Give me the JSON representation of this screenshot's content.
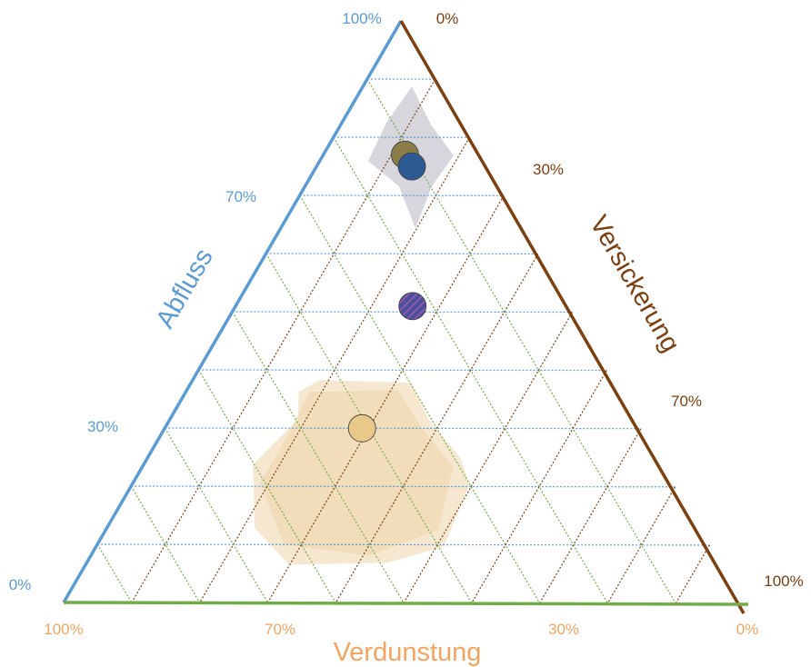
{
  "axes": {
    "abfluss": {
      "title": "Abfluss",
      "color": "#5b9bd5",
      "ticks": {
        "top": "100%",
        "upper": "70%",
        "lower": "30%",
        "bottom": "0%"
      }
    },
    "versickerung": {
      "title": "Versickerung",
      "color": "#7b3f10",
      "ticks": {
        "top": "0%",
        "upper": "30%",
        "lower": "70%",
        "bottom": "100%"
      }
    },
    "verdunstung": {
      "title": "Verdunstung",
      "color": "#f4a460",
      "base_line_color": "#70ad47",
      "ticks": {
        "left": "100%",
        "upper": "70%",
        "lower": "30%",
        "right": "0%"
      }
    }
  },
  "grid": {
    "colors": {
      "abfluss": "#5b9bd5",
      "verdunstung": "#70ad47",
      "versickerung": "#7b3f10"
    },
    "step_percent": 10
  },
  "chart_data": {
    "type": "ternary-scatter",
    "components": [
      "Abfluss",
      "Versickerung",
      "Verdunstung"
    ],
    "points": [
      {
        "abfluss": 77,
        "versickerung": 12,
        "verdunstung": 11,
        "color": "#8b7d4a",
        "fill": "solid"
      },
      {
        "abfluss": 75,
        "versickerung": 14,
        "verdunstung": 11,
        "color": "#2e5a94",
        "fill": "solid"
      },
      {
        "abfluss": 51,
        "versickerung": 26,
        "verdunstung": 23,
        "color": "#4a4f9e",
        "fill": "hatched-purple"
      },
      {
        "abfluss": 30,
        "versickerung": 29,
        "verdunstung": 41,
        "color": "#e9c98a",
        "fill": "solid"
      }
    ],
    "regions": [
      {
        "color": "#c8c8d0",
        "opacity": 0.75,
        "layer": "outer",
        "around_point": 1
      },
      {
        "color": "#f0d9b0",
        "opacity": 0.6,
        "layer": "outer",
        "around_point": 3
      },
      {
        "color": "#ecd3a6",
        "opacity": 0.55,
        "layer": "inner",
        "around_point": 3
      }
    ]
  }
}
